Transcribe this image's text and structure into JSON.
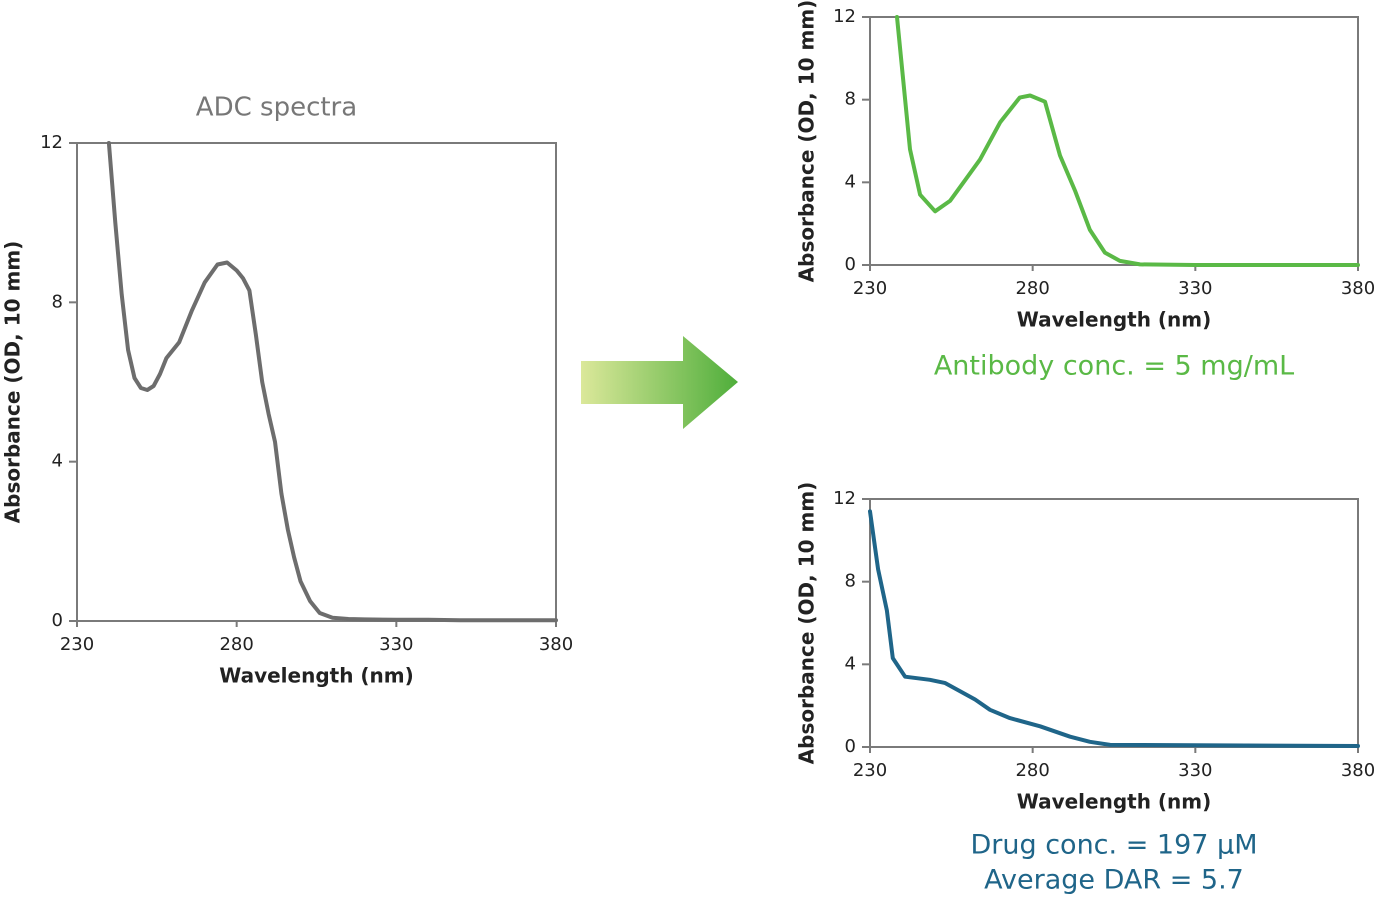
{
  "chart_data": [
    {
      "type": "line",
      "title": "ADC spectra",
      "xlabel": "Wavelength (nm)",
      "ylabel": "Absorbance (OD, 10 mm)",
      "color": "#6d6d6d",
      "xlim": [
        230,
        380
      ],
      "xticks": [
        230,
        280,
        330,
        380
      ],
      "ylim": [
        0,
        12
      ],
      "yticks": [
        0,
        4,
        8,
        12
      ],
      "x": [
        240,
        242,
        244,
        246,
        248,
        250,
        252,
        254,
        256,
        258,
        262,
        266,
        270,
        274,
        277,
        280,
        282,
        284,
        286,
        288,
        290,
        292,
        294,
        296,
        298,
        300,
        303,
        306,
        310,
        315,
        320,
        330,
        340,
        350,
        360,
        370,
        380
      ],
      "values": [
        12,
        10.0,
        8.2,
        6.8,
        6.1,
        5.85,
        5.8,
        5.9,
        6.2,
        6.6,
        7.0,
        7.8,
        8.5,
        8.95,
        9.0,
        8.8,
        8.6,
        8.3,
        7.2,
        6.0,
        5.2,
        4.5,
        3.2,
        2.3,
        1.6,
        1.0,
        0.5,
        0.2,
        0.08,
        0.05,
        0.04,
        0.03,
        0.03,
        0.02,
        0.02,
        0.02,
        0.02
      ]
    },
    {
      "type": "line",
      "xlabel": "Wavelength (nm)",
      "ylabel": "Absorbance (OD, 10 mm)",
      "color": "#5ab946",
      "xlim": [
        230,
        380
      ],
      "xticks": [
        230,
        280,
        330,
        380
      ],
      "ylim": [
        0,
        12
      ],
      "yticks": [
        0,
        4,
        8,
        12
      ],
      "annotations": [
        "Antibody conc. = 5 mg/mL"
      ],
      "x": [
        238.3,
        240.2,
        242.3,
        245.4,
        250,
        254.6,
        259.2,
        263.8,
        270,
        276,
        279.2,
        283.8,
        288.4,
        293,
        297.6,
        302.2,
        306.8,
        313,
        330,
        380
      ],
      "values": [
        12,
        8.95,
        5.6,
        3.4,
        2.6,
        3.1,
        4.1,
        5.1,
        6.9,
        8.1,
        8.2,
        7.9,
        5.3,
        3.6,
        1.7,
        0.6,
        0.2,
        0.03,
        0,
        0
      ]
    },
    {
      "type": "line",
      "xlabel": "Wavelength (nm)",
      "ylabel": "Absorbance (OD, 10 mm)",
      "color": "#1f6589",
      "xlim": [
        230,
        380
      ],
      "xticks": [
        230,
        280,
        330,
        380
      ],
      "ylim": [
        0,
        12
      ],
      "yticks": [
        0,
        4,
        8,
        12
      ],
      "annotations": [
        "Drug conc. = 197 µM",
        "Average DAR = 5.7"
      ],
      "x": [
        230,
        232.5,
        235.2,
        237,
        240.8,
        248.4,
        253,
        257.7,
        262.3,
        266.9,
        273,
        282.3,
        291.5,
        297.6,
        303.8,
        330,
        380
      ],
      "values": [
        11.4,
        8.6,
        6.6,
        4.3,
        3.4,
        3.25,
        3.1,
        2.7,
        2.3,
        1.8,
        1.4,
        1.0,
        0.5,
        0.25,
        0.1,
        0.08,
        0.05
      ]
    }
  ]
}
